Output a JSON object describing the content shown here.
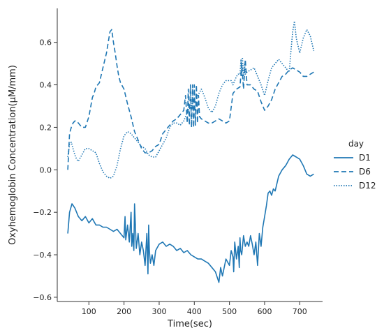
{
  "chart_data": {
    "type": "line",
    "xlabel": "Time(sec)",
    "ylabel": "Oxyhemoglobin Concentration(µM/mm)",
    "xlim": [
      10,
      765
    ],
    "ylim": [
      -0.62,
      0.76
    ],
    "x_ticks": [
      100,
      200,
      300,
      400,
      500,
      600,
      700
    ],
    "y_ticks": [
      -0.6,
      -0.4,
      -0.2,
      0.0,
      0.2,
      0.4,
      0.6
    ],
    "x_tick_labels": [
      "100",
      "200",
      "300",
      "400",
      "500",
      "600",
      "700"
    ],
    "y_tick_labels": [
      "−0.6",
      "−0.4",
      "−0.2",
      "0.0",
      "0.2",
      "0.4",
      "0.6"
    ],
    "grid": false,
    "legend": {
      "title": "day",
      "placement": "right"
    },
    "colors": {
      "series": "#1f77b4",
      "axis": "#333333"
    },
    "series": [
      {
        "name": "D1",
        "style": "solid",
        "x": [
          40,
          45,
          52,
          60,
          65,
          70,
          80,
          90,
          100,
          110,
          120,
          130,
          140,
          150,
          160,
          170,
          180,
          190,
          200,
          203,
          205,
          210,
          215,
          220,
          222,
          225,
          228,
          230,
          235,
          240,
          245,
          250,
          255,
          260,
          265,
          268,
          270,
          272,
          275,
          280,
          285,
          290,
          300,
          310,
          320,
          330,
          340,
          350,
          360,
          370,
          380,
          390,
          400,
          410,
          420,
          430,
          440,
          450,
          460,
          470,
          475,
          480,
          490,
          500,
          505,
          510,
          512,
          515,
          520,
          525,
          528,
          530,
          532,
          535,
          540,
          545,
          550,
          555,
          560,
          565,
          570,
          575,
          580,
          585,
          590,
          595,
          600,
          605,
          610,
          615,
          620,
          625,
          630,
          640,
          650,
          660,
          670,
          680,
          690,
          700,
          710,
          720,
          730,
          740
        ],
        "y": [
          -0.3,
          -0.2,
          -0.16,
          -0.18,
          -0.2,
          -0.22,
          -0.24,
          -0.22,
          -0.25,
          -0.23,
          -0.26,
          -0.26,
          -0.27,
          -0.27,
          -0.28,
          -0.29,
          -0.28,
          -0.3,
          -0.32,
          -0.22,
          -0.33,
          -0.26,
          -0.34,
          -0.2,
          -0.36,
          -0.3,
          -0.38,
          -0.16,
          -0.37,
          -0.3,
          -0.4,
          -0.34,
          -0.38,
          -0.45,
          -0.3,
          -0.49,
          -0.26,
          -0.38,
          -0.44,
          -0.4,
          -0.45,
          -0.38,
          -0.35,
          -0.34,
          -0.36,
          -0.35,
          -0.36,
          -0.38,
          -0.37,
          -0.39,
          -0.38,
          -0.4,
          -0.41,
          -0.42,
          -0.42,
          -0.43,
          -0.44,
          -0.46,
          -0.48,
          -0.53,
          -0.46,
          -0.5,
          -0.42,
          -0.45,
          -0.38,
          -0.41,
          -0.48,
          -0.34,
          -0.42,
          -0.36,
          -0.46,
          -0.32,
          -0.38,
          -0.4,
          -0.31,
          -0.36,
          -0.34,
          -0.36,
          -0.31,
          -0.35,
          -0.4,
          -0.34,
          -0.45,
          -0.3,
          -0.36,
          -0.27,
          -0.22,
          -0.17,
          -0.11,
          -0.1,
          -0.12,
          -0.09,
          -0.1,
          -0.03,
          0.0,
          0.02,
          0.05,
          0.07,
          0.06,
          0.05,
          0.02,
          -0.02,
          -0.03,
          -0.02
        ]
      },
      {
        "name": "D6",
        "style": "dashed",
        "x": [
          40,
          45,
          50,
          55,
          60,
          65,
          70,
          80,
          90,
          100,
          110,
          115,
          120,
          130,
          140,
          150,
          155,
          160,
          165,
          170,
          175,
          180,
          185,
          190,
          200,
          210,
          220,
          230,
          240,
          250,
          260,
          270,
          280,
          290,
          300,
          310,
          320,
          330,
          340,
          350,
          360,
          370,
          375,
          380,
          383,
          386,
          389,
          392,
          395,
          398,
          400,
          403,
          406,
          409,
          412,
          415,
          420,
          430,
          440,
          450,
          460,
          470,
          480,
          490,
          500,
          510,
          520,
          530,
          535,
          540,
          545,
          550,
          560,
          570,
          580,
          590,
          600,
          610,
          620,
          630,
          640,
          650,
          660,
          670,
          680,
          690,
          700,
          710,
          720,
          730,
          740
        ],
        "y": [
          0.0,
          0.17,
          0.2,
          0.22,
          0.23,
          0.23,
          0.22,
          0.2,
          0.2,
          0.25,
          0.34,
          0.36,
          0.39,
          0.41,
          0.48,
          0.55,
          0.6,
          0.65,
          0.66,
          0.6,
          0.55,
          0.49,
          0.44,
          0.41,
          0.38,
          0.31,
          0.25,
          0.18,
          0.14,
          0.1,
          0.08,
          0.08,
          0.09,
          0.11,
          0.12,
          0.17,
          0.19,
          0.21,
          0.23,
          0.24,
          0.26,
          0.28,
          0.35,
          0.22,
          0.38,
          0.21,
          0.4,
          0.2,
          0.4,
          0.2,
          0.4,
          0.21,
          0.4,
          0.22,
          0.35,
          0.25,
          0.24,
          0.23,
          0.22,
          0.22,
          0.23,
          0.24,
          0.23,
          0.22,
          0.23,
          0.36,
          0.38,
          0.39,
          0.5,
          0.38,
          0.52,
          0.4,
          0.4,
          0.38,
          0.37,
          0.32,
          0.28,
          0.3,
          0.33,
          0.38,
          0.41,
          0.44,
          0.45,
          0.47,
          0.48,
          0.47,
          0.46,
          0.44,
          0.44,
          0.45,
          0.46
        ]
      },
      {
        "name": "D12",
        "style": "dotted",
        "x": [
          40,
          45,
          50,
          55,
          60,
          65,
          70,
          80,
          90,
          100,
          110,
          120,
          130,
          140,
          150,
          160,
          170,
          180,
          190,
          200,
          210,
          220,
          230,
          240,
          250,
          260,
          270,
          280,
          290,
          300,
          310,
          320,
          330,
          340,
          350,
          360,
          370,
          380,
          390,
          400,
          410,
          420,
          430,
          440,
          450,
          460,
          470,
          480,
          490,
          500,
          505,
          510,
          515,
          520,
          525,
          530,
          533,
          535,
          537,
          540,
          543,
          545,
          550,
          560,
          570,
          580,
          590,
          600,
          610,
          620,
          630,
          640,
          650,
          660,
          670,
          675,
          680,
          685,
          690,
          700,
          710,
          720,
          730,
          740
        ],
        "y": [
          0.06,
          0.12,
          0.13,
          0.1,
          0.07,
          0.05,
          0.04,
          0.07,
          0.1,
          0.1,
          0.09,
          0.08,
          0.03,
          -0.01,
          -0.03,
          -0.04,
          -0.03,
          0.02,
          0.1,
          0.16,
          0.18,
          0.17,
          0.15,
          0.13,
          0.11,
          0.1,
          0.07,
          0.06,
          0.06,
          0.09,
          0.12,
          0.15,
          0.2,
          0.22,
          0.22,
          0.21,
          0.23,
          0.27,
          0.3,
          0.33,
          0.35,
          0.38,
          0.34,
          0.29,
          0.27,
          0.3,
          0.36,
          0.4,
          0.42,
          0.42,
          0.42,
          0.4,
          0.42,
          0.44,
          0.45,
          0.45,
          0.52,
          0.44,
          0.53,
          0.44,
          0.5,
          0.45,
          0.46,
          0.47,
          0.48,
          0.44,
          0.4,
          0.35,
          0.42,
          0.48,
          0.5,
          0.52,
          0.5,
          0.48,
          0.46,
          0.56,
          0.65,
          0.7,
          0.62,
          0.55,
          0.62,
          0.66,
          0.63,
          0.56
        ]
      }
    ]
  }
}
